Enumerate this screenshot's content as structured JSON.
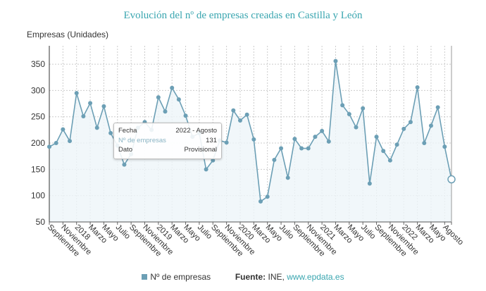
{
  "chart_data": {
    "type": "line",
    "title": "Evolución del nº de empresas creadas en Castilla y León",
    "ylabel": "Empresas (Unidades)",
    "xlabel": "",
    "ylim": [
      50,
      385
    ],
    "yticks": [
      50,
      100,
      150,
      200,
      250,
      300,
      350
    ],
    "grid": true,
    "x": [
      "2017-09",
      "2017-10",
      "2017-11",
      "2017-12",
      "2018-01",
      "2018-02",
      "2018-03",
      "2018-04",
      "2018-05",
      "2018-06",
      "2018-07",
      "2018-08",
      "2018-09",
      "2018-10",
      "2018-11",
      "2018-12",
      "2019-01",
      "2019-02",
      "2019-03",
      "2019-04",
      "2019-05",
      "2019-06",
      "2019-07",
      "2019-08",
      "2019-09",
      "2019-10",
      "2019-11",
      "2019-12",
      "2020-01",
      "2020-02",
      "2020-03",
      "2020-04",
      "2020-05",
      "2020-06",
      "2020-07",
      "2020-08",
      "2020-09",
      "2020-10",
      "2020-11",
      "2020-12",
      "2021-01",
      "2021-02",
      "2021-03",
      "2021-04",
      "2021-05",
      "2021-06",
      "2021-07",
      "2021-08",
      "2021-09",
      "2021-10",
      "2021-11",
      "2021-12",
      "2022-01",
      "2022-02",
      "2022-03",
      "2022-04",
      "2022-05",
      "2022-06",
      "2022-07",
      "2022-08"
    ],
    "xtick_labels": [
      "Septiembre",
      "Noviembre",
      "2018",
      "Marzo",
      "Mayo",
      "Julio",
      "Septiembre",
      "Noviembre",
      "2019",
      "Marzo",
      "Mayo",
      "Julio",
      "Septiembre",
      "Noviembre",
      "2020",
      "Marzo",
      "Mayo",
      "Julio",
      "Septiembre",
      "Noviembre",
      "2021",
      "Marzo",
      "Mayo",
      "Julio",
      "Septiembre",
      "Noviembre",
      "2022",
      "Marzo",
      "Mayo",
      "Agosto"
    ],
    "series": [
      {
        "name": "Nº de empresas",
        "color": "#6c9fb5",
        "values": [
          193,
          200,
          226,
          204,
          295,
          251,
          276,
          229,
          270,
          219,
          195,
          159,
          179,
          229,
          240,
          225,
          287,
          260,
          305,
          283,
          252,
          212,
          219,
          150,
          167,
          205,
          201,
          262,
          243,
          254,
          207,
          89,
          98,
          168,
          190,
          134,
          208,
          190,
          190,
          212,
          223,
          203,
          356,
          272,
          255,
          230,
          266,
          123,
          212,
          185,
          167,
          197,
          227,
          240,
          306,
          200,
          233,
          268,
          193,
          131
        ]
      }
    ],
    "legend": "bottom"
  },
  "tooltip": {
    "k1": "Fecha",
    "v1": "2022 - Agosto",
    "k2": "Nº de empresas",
    "v2": "131",
    "k3": "Dato",
    "v3": "Provisional"
  },
  "source": {
    "label": "Fuente:",
    "text": "INE,",
    "link": "www.epdata.es"
  }
}
